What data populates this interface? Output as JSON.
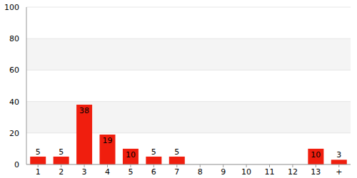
{
  "chart_data": {
    "type": "bar",
    "categories": [
      "1",
      "2",
      "3",
      "4",
      "5",
      "6",
      "7",
      "8",
      "9",
      "10",
      "11",
      "12",
      "13",
      "+"
    ],
    "values": [
      5,
      5,
      38,
      19,
      10,
      5,
      5,
      0,
      0,
      0,
      0,
      0,
      10,
      3
    ],
    "color": "#f01e0e",
    "ylim": [
      0,
      100
    ],
    "yticks": [
      0,
      20,
      40,
      60,
      80,
      100
    ],
    "grid": true,
    "data_labels": true
  }
}
